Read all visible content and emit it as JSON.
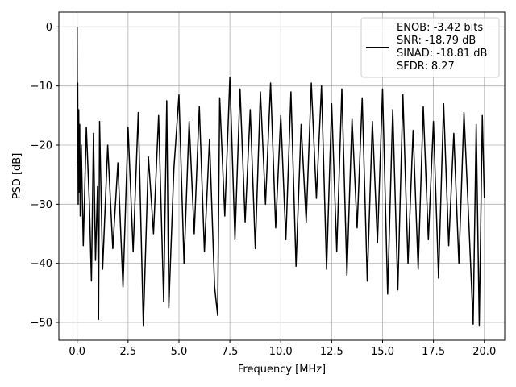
{
  "chart_data": {
    "type": "line",
    "title": "",
    "xlabel": "Frequency [MHz]",
    "ylabel": "PSD [dB]",
    "xlim": [
      -0.9,
      21.0
    ],
    "ylim": [
      -53.0,
      2.5
    ],
    "xticks": [
      0.0,
      2.5,
      5.0,
      7.5,
      10.0,
      12.5,
      15.0,
      17.5,
      20.0
    ],
    "xtick_labels": [
      "0.0",
      "2.5",
      "5.0",
      "7.5",
      "10.0",
      "12.5",
      "15.0",
      "17.5",
      "20.0"
    ],
    "yticks": [
      0,
      -10,
      -20,
      -30,
      -40,
      -50
    ],
    "ytick_labels": [
      "0",
      "−10",
      "−20",
      "−30",
      "−40",
      "−50"
    ],
    "grid": true,
    "legend": {
      "placement": "top-right",
      "entries": [
        "ENOB: -3.42 bits",
        "SNR: -18.79 dB",
        "SINAD: -18.81 dB",
        "SFDR: 8.27"
      ]
    },
    "series": [
      {
        "color": "#000000",
        "x": [
          0.0,
          0.0125,
          0.025,
          0.05,
          0.075,
          0.1,
          0.125,
          0.15,
          0.2,
          0.3,
          0.45,
          0.6,
          0.7,
          0.8,
          0.9,
          1.0,
          1.05,
          1.1,
          1.25,
          1.5,
          1.75,
          2.0,
          2.25,
          2.5,
          2.75,
          3.0,
          3.25,
          3.5,
          3.75,
          4.0,
          4.25,
          4.4,
          4.5,
          4.75,
          5.0,
          5.25,
          5.5,
          5.75,
          6.0,
          6.25,
          6.5,
          6.75,
          6.9,
          7.0,
          7.25,
          7.5,
          7.75,
          8.0,
          8.25,
          8.5,
          8.75,
          9.0,
          9.25,
          9.5,
          9.75,
          10.0,
          10.25,
          10.5,
          10.75,
          11.0,
          11.25,
          11.5,
          11.75,
          12.0,
          12.25,
          12.5,
          12.75,
          13.0,
          13.25,
          13.5,
          13.75,
          14.0,
          14.25,
          14.5,
          14.75,
          15.0,
          15.25,
          15.5,
          15.75,
          16.0,
          16.25,
          16.5,
          16.75,
          17.0,
          17.25,
          17.5,
          17.75,
          18.0,
          18.25,
          18.5,
          18.75,
          19.0,
          19.25,
          19.45,
          19.6,
          19.75,
          19.9,
          20.0
        ],
        "values": [
          0.0,
          -23.0,
          -9.5,
          -30.0,
          -14.0,
          -28.0,
          -16.5,
          -32.0,
          -20.0,
          -37.0,
          -17.0,
          -30.0,
          -43.0,
          -18.0,
          -39.5,
          -27.0,
          -49.5,
          -16.0,
          -41.0,
          -20.0,
          -37.5,
          -23.0,
          -44.0,
          -17.0,
          -38.0,
          -14.5,
          -50.5,
          -22.0,
          -35.0,
          -15.0,
          -46.5,
          -12.5,
          -47.5,
          -24.0,
          -11.5,
          -40.0,
          -16.0,
          -35.0,
          -13.5,
          -38.0,
          -19.0,
          -44.0,
          -48.8,
          -12.0,
          -32.0,
          -8.5,
          -36.0,
          -10.5,
          -33.0,
          -14.0,
          -37.5,
          -11.0,
          -30.0,
          -9.5,
          -34.0,
          -15.0,
          -36.0,
          -11.0,
          -40.5,
          -16.5,
          -33.0,
          -9.5,
          -29.0,
          -10.0,
          -41.0,
          -13.0,
          -38.0,
          -10.5,
          -42.0,
          -15.5,
          -34.0,
          -12.0,
          -43.0,
          -16.0,
          -36.5,
          -10.5,
          -45.2,
          -14.0,
          -44.5,
          -11.5,
          -40.0,
          -17.5,
          -41.0,
          -13.5,
          -36.0,
          -16.0,
          -42.5,
          -13.0,
          -37.0,
          -18.0,
          -40.0,
          -14.5,
          -34.0,
          -50.3,
          -16.5,
          -50.5,
          -15.0,
          -29.0
        ]
      }
    ]
  }
}
